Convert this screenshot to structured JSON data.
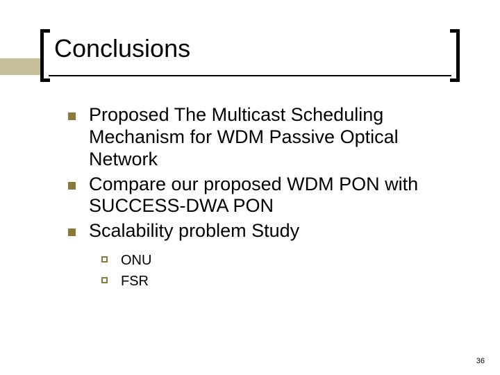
{
  "slide": {
    "title": "Conclusions",
    "page_number": "36",
    "accent_color": "#c7bf9a",
    "bullet_fill_color": "#8a7a3a",
    "title_fontsize": 36,
    "body_fontsize": 27,
    "sub_fontsize": 20,
    "bullets": {
      "b0": "Proposed The Multicast Scheduling Mechanism for WDM Passive Optical Network",
      "b1": "Compare our proposed WDM PON with SUCCESS-DWA PON",
      "b2": "Scalability problem Study"
    },
    "sub_bullets": {
      "s0": "ONU",
      "s1": "FSR"
    }
  }
}
